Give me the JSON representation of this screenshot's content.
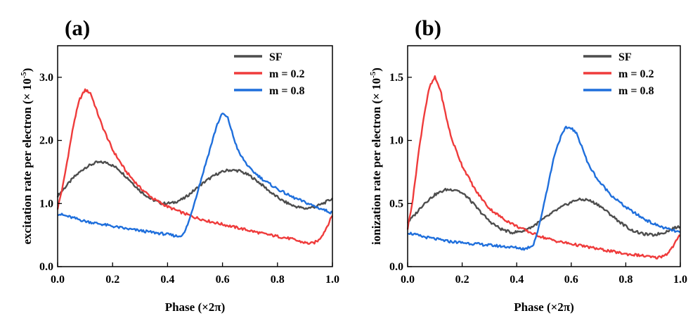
{
  "chart_data": [
    {
      "type": "line",
      "panel_label": "(a)",
      "xlabel": "Phase (×2π)",
      "ylabel": "excitation rate per electron",
      "ylabel_unit_prefix": "(× 10",
      "ylabel_unit_exp": "-5",
      "ylabel_unit_suffix": ")",
      "xlim": [
        0,
        1.0
      ],
      "ylim": [
        0,
        3.5
      ],
      "xticks": [
        "0.0",
        "0.2",
        "0.4",
        "0.6",
        "0.8",
        "1.0"
      ],
      "xtick_values": [
        0,
        0.2,
        0.4,
        0.6,
        0.8,
        1.0
      ],
      "yticks": [
        "0.0",
        "1.0",
        "2.0",
        "3.0"
      ],
      "ytick_values": [
        0,
        1.0,
        2.0,
        3.0
      ],
      "legend_position": "top-right",
      "series": [
        {
          "name": "SF",
          "color": "#4d4d4d",
          "x": [
            0,
            0.03,
            0.06,
            0.1,
            0.14,
            0.18,
            0.22,
            0.26,
            0.3,
            0.34,
            0.38,
            0.42,
            0.46,
            0.5,
            0.54,
            0.58,
            0.62,
            0.66,
            0.7,
            0.74,
            0.78,
            0.82,
            0.86,
            0.9,
            0.94,
            0.97,
            1.0
          ],
          "y": [
            1.12,
            1.27,
            1.42,
            1.57,
            1.65,
            1.65,
            1.55,
            1.38,
            1.2,
            1.07,
            1.0,
            1.01,
            1.08,
            1.22,
            1.36,
            1.47,
            1.53,
            1.52,
            1.44,
            1.31,
            1.16,
            1.04,
            0.96,
            0.92,
            0.95,
            1.01,
            1.08
          ]
        },
        {
          "name": "m = 0.2",
          "color": "#ef3b3b",
          "x": [
            0,
            0.02,
            0.04,
            0.06,
            0.08,
            0.1,
            0.12,
            0.14,
            0.16,
            0.2,
            0.25,
            0.3,
            0.35,
            0.4,
            0.45,
            0.5,
            0.55,
            0.6,
            0.65,
            0.7,
            0.75,
            0.8,
            0.85,
            0.88,
            0.91,
            0.93,
            0.95,
            0.97,
            0.99,
            1.0
          ],
          "y": [
            0.92,
            1.3,
            1.8,
            2.3,
            2.65,
            2.8,
            2.75,
            2.5,
            2.25,
            1.85,
            1.5,
            1.25,
            1.07,
            0.95,
            0.86,
            0.78,
            0.72,
            0.67,
            0.62,
            0.57,
            0.52,
            0.48,
            0.44,
            0.4,
            0.37,
            0.37,
            0.42,
            0.55,
            0.72,
            0.82
          ]
        },
        {
          "name": "m = 0.8",
          "color": "#1f6fdc",
          "x": [
            0,
            0.05,
            0.1,
            0.15,
            0.2,
            0.25,
            0.3,
            0.35,
            0.4,
            0.44,
            0.46,
            0.48,
            0.5,
            0.52,
            0.54,
            0.56,
            0.58,
            0.6,
            0.62,
            0.64,
            0.66,
            0.7,
            0.75,
            0.8,
            0.85,
            0.9,
            0.95,
            1.0
          ],
          "y": [
            0.84,
            0.78,
            0.72,
            0.68,
            0.64,
            0.6,
            0.57,
            0.54,
            0.51,
            0.48,
            0.52,
            0.75,
            1.05,
            1.35,
            1.65,
            1.95,
            2.25,
            2.43,
            2.35,
            2.05,
            1.8,
            1.55,
            1.37,
            1.23,
            1.11,
            1.02,
            0.93,
            0.85
          ]
        }
      ]
    },
    {
      "type": "line",
      "panel_label": "(b)",
      "xlabel": "Phase (×2π)",
      "ylabel": "ionization rate per electron",
      "ylabel_unit_prefix": "(× 10",
      "ylabel_unit_exp": "-5",
      "ylabel_unit_suffix": ")",
      "xlim": [
        0,
        1.0
      ],
      "ylim": [
        0,
        1.75
      ],
      "xticks": [
        "0.0",
        "0.2",
        "0.4",
        "0.6",
        "0.8",
        "1.0"
      ],
      "xtick_values": [
        0,
        0.2,
        0.4,
        0.6,
        0.8,
        1.0
      ],
      "yticks": [
        "0.0",
        "0.5",
        "1.0",
        "1.5"
      ],
      "ytick_values": [
        0,
        0.5,
        1.0,
        1.5
      ],
      "legend_position": "top-right",
      "series": [
        {
          "name": "SF",
          "color": "#4d4d4d",
          "x": [
            0,
            0.03,
            0.06,
            0.1,
            0.14,
            0.18,
            0.22,
            0.26,
            0.3,
            0.34,
            0.38,
            0.42,
            0.46,
            0.5,
            0.54,
            0.58,
            0.62,
            0.66,
            0.7,
            0.74,
            0.78,
            0.82,
            0.86,
            0.9,
            0.94,
            0.97,
            1.0
          ],
          "y": [
            0.35,
            0.42,
            0.5,
            0.57,
            0.61,
            0.61,
            0.55,
            0.45,
            0.36,
            0.3,
            0.27,
            0.28,
            0.32,
            0.38,
            0.44,
            0.49,
            0.53,
            0.53,
            0.49,
            0.42,
            0.35,
            0.29,
            0.26,
            0.25,
            0.27,
            0.3,
            0.32
          ]
        },
        {
          "name": "m = 0.2",
          "color": "#ef3b3b",
          "x": [
            0,
            0.02,
            0.04,
            0.06,
            0.08,
            0.1,
            0.12,
            0.14,
            0.16,
            0.2,
            0.25,
            0.3,
            0.35,
            0.4,
            0.45,
            0.5,
            0.55,
            0.6,
            0.65,
            0.7,
            0.75,
            0.8,
            0.85,
            0.88,
            0.91,
            0.93,
            0.95,
            0.97,
            0.99,
            1.0
          ],
          "y": [
            0.3,
            0.55,
            0.9,
            1.2,
            1.42,
            1.5,
            1.4,
            1.2,
            1.02,
            0.8,
            0.6,
            0.46,
            0.38,
            0.32,
            0.27,
            0.23,
            0.2,
            0.18,
            0.16,
            0.14,
            0.12,
            0.1,
            0.09,
            0.08,
            0.07,
            0.08,
            0.1,
            0.15,
            0.22,
            0.25
          ]
        },
        {
          "name": "m = 0.8",
          "color": "#1f6fdc",
          "x": [
            0,
            0.05,
            0.1,
            0.15,
            0.2,
            0.25,
            0.3,
            0.35,
            0.4,
            0.43,
            0.46,
            0.48,
            0.5,
            0.52,
            0.54,
            0.56,
            0.58,
            0.6,
            0.62,
            0.64,
            0.66,
            0.7,
            0.75,
            0.8,
            0.85,
            0.9,
            0.95,
            1.0
          ],
          "y": [
            0.27,
            0.24,
            0.22,
            0.2,
            0.19,
            0.18,
            0.17,
            0.16,
            0.15,
            0.14,
            0.17,
            0.3,
            0.5,
            0.7,
            0.9,
            1.02,
            1.1,
            1.1,
            1.05,
            0.95,
            0.82,
            0.68,
            0.56,
            0.47,
            0.4,
            0.34,
            0.3,
            0.27
          ]
        }
      ]
    }
  ]
}
